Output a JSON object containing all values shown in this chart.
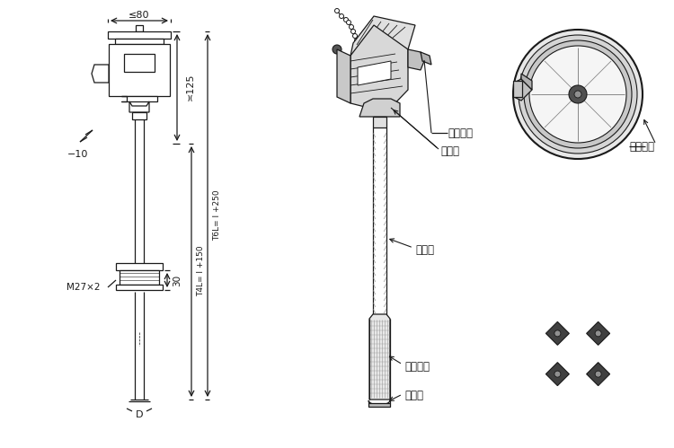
{
  "bg_color": "#ffffff",
  "line_color": "#1a1a1a",
  "fig_width": 7.5,
  "fig_height": 4.99,
  "labels": {
    "dim_80": "≤80",
    "dim_125": "≍125",
    "dim_10": "−10",
    "dim_30": "30",
    "dim_M27": "M27×2",
    "dim_D": "D",
    "dim_T4L": "T4L= l +150",
    "dim_T6L": "T6L= l +250",
    "label_outlet": "电气出口",
    "label_box": "接线盒",
    "label_tube": "保护管",
    "label_insulate": "绦缘套管",
    "label_sensor": "测量端",
    "label_terminal": "接线端子"
  }
}
